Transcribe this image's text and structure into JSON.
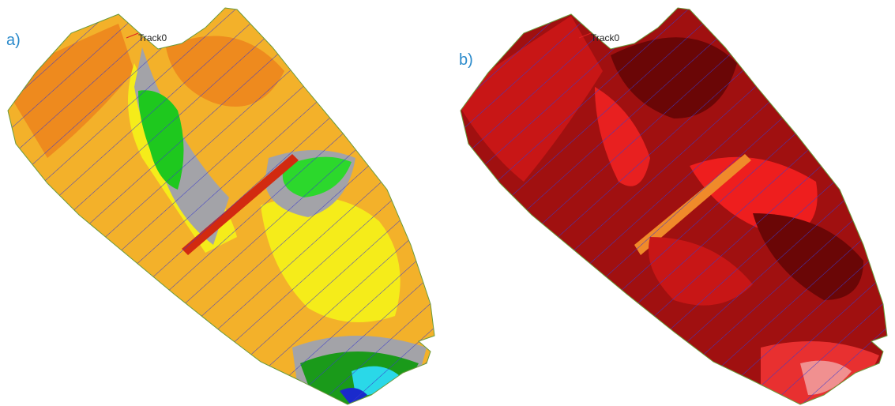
{
  "panels": [
    {
      "label": "a)",
      "track_label": "Track0"
    },
    {
      "label": "b)",
      "track_label": "Track0"
    }
  ]
}
